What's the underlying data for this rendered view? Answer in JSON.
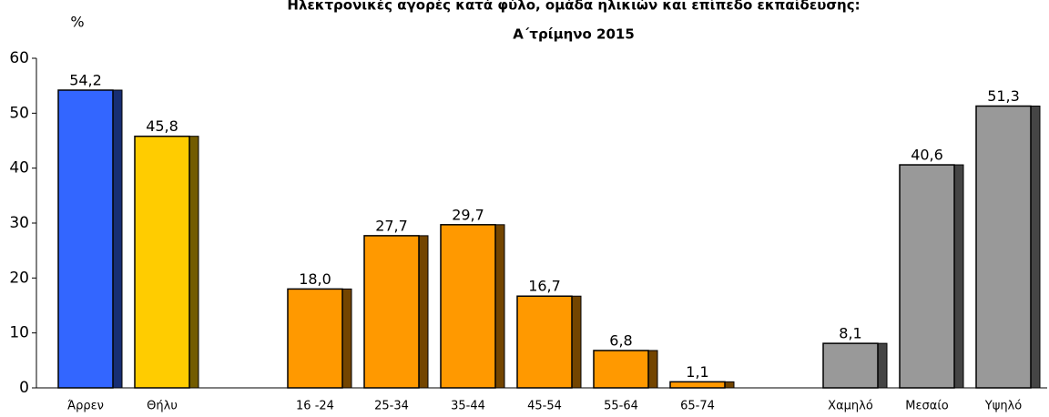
{
  "chart_data": {
    "type": "bar",
    "title": [
      "Ηλεκτρονικές αγορές κατά φύλο, ομάδα ηλικιών και επίπεδο εκπαίδευσης:",
      "Α΄τρίμηνο 2015"
    ],
    "y_label": "%",
    "categories": [
      "Άρρεν",
      "Θήλυ",
      null,
      "16 -24",
      "25-34",
      "35-44",
      "45-54",
      "55-64",
      "65-74",
      null,
      "Χαμηλό",
      "Μεσαίο",
      "Υψηλό"
    ],
    "values": [
      54.2,
      45.8,
      null,
      18.0,
      27.7,
      29.7,
      16.7,
      6.8,
      1.1,
      null,
      8.1,
      40.6,
      51.3
    ],
    "value_labels": [
      "54,2",
      "45,8",
      null,
      "18,0",
      "27,7",
      "29,7",
      "16,7",
      "6,8",
      "1,1",
      null,
      "8,1",
      "40,6",
      "51,3"
    ],
    "colors": [
      "#3366ff",
      "#ffcc00",
      null,
      "#ff9900",
      "#ff9900",
      "#ff9900",
      "#ff9900",
      "#ff9900",
      "#ff9900",
      null,
      "#999999",
      "#999999",
      "#999999"
    ],
    "ylim": [
      0,
      60
    ],
    "yticks": [
      0,
      10,
      20,
      30,
      40,
      50,
      60
    ],
    "grid": false
  }
}
